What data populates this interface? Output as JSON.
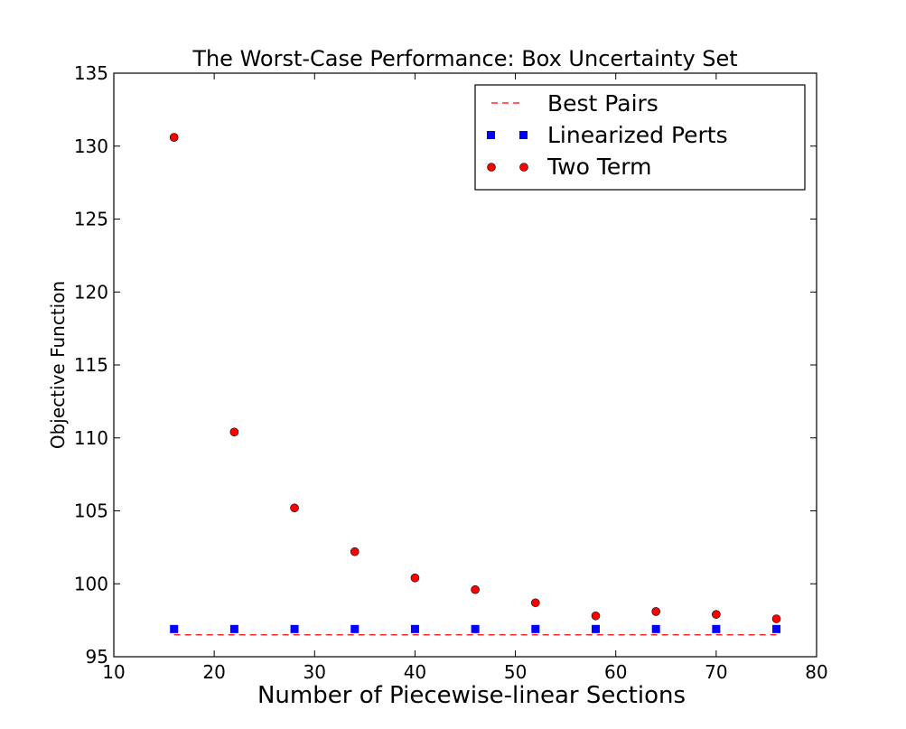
{
  "chart_data": {
    "type": "scatter",
    "title": "The Worst-Case Performance: Box Uncertainty Set",
    "xlabel": "Number of Piecewise-linear Sections",
    "ylabel": "Objective Function",
    "xlim": [
      10,
      80
    ],
    "ylim": [
      95,
      135
    ],
    "xticks": [
      10,
      20,
      30,
      40,
      50,
      60,
      70,
      80
    ],
    "yticks": [
      95,
      100,
      105,
      110,
      115,
      120,
      125,
      130,
      135
    ],
    "grid": false,
    "legend_position": "top-right",
    "x": [
      16,
      22,
      28,
      34,
      40,
      46,
      52,
      58,
      64,
      70,
      76
    ],
    "series": [
      {
        "name": "Best Pairs",
        "style": "dashed-line",
        "color": "#ff0000",
        "values": [
          96.5,
          96.5,
          96.5,
          96.5,
          96.5,
          96.5,
          96.5,
          96.5,
          96.5,
          96.5,
          96.5
        ]
      },
      {
        "name": "Linearized Perts",
        "style": "square-marker",
        "color": "#0000ff",
        "values": [
          96.9,
          96.9,
          96.9,
          96.9,
          96.9,
          96.9,
          96.9,
          96.9,
          96.9,
          96.9,
          96.9
        ]
      },
      {
        "name": "Two Term",
        "style": "circle-marker",
        "color": "#ff0000",
        "values": [
          130.6,
          110.4,
          105.2,
          102.2,
          100.4,
          99.6,
          98.7,
          97.8,
          98.1,
          97.9,
          97.6
        ]
      }
    ]
  }
}
